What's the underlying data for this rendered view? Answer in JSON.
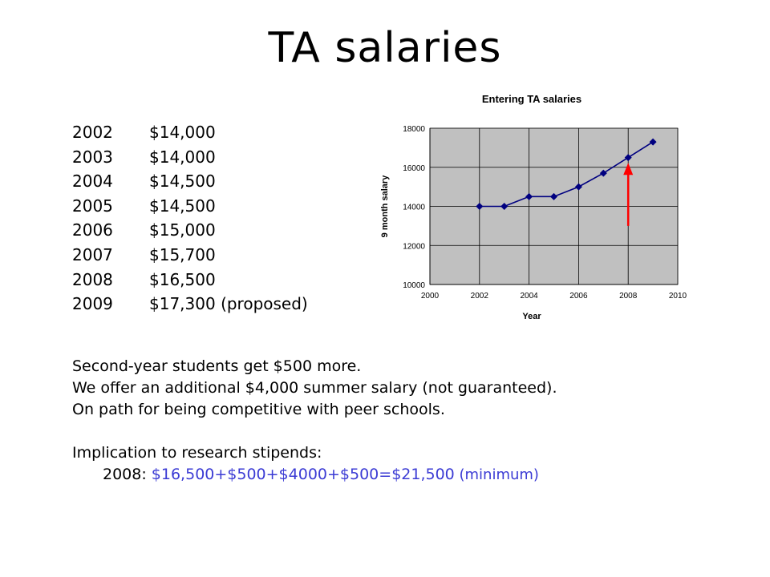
{
  "title": "TA salaries",
  "salary_table": [
    {
      "year": "2002",
      "amount": "$14,000"
    },
    {
      "year": "2003",
      "amount": "$14,000"
    },
    {
      "year": "2004",
      "amount": "$14,500"
    },
    {
      "year": "2005",
      "amount": "$14,500"
    },
    {
      "year": "2006",
      "amount": "$15,000"
    },
    {
      "year": "2007",
      "amount": "$15,700"
    },
    {
      "year": "2008",
      "amount": "$16,500"
    },
    {
      "year": "2009",
      "amount": "$17,300 (proposed)"
    }
  ],
  "notes": {
    "line1": "Second-year students get $500 more.",
    "line2": "We offer an additional $4,000 summer salary (not guaranteed).",
    "line3": "On path for being competitive with peer schools.",
    "implication_heading": "Implication to research stipends:",
    "implication_year": "2008: ",
    "implication_calc": "$16,500+$500+$4000+$500=$21,500",
    "implication_suffix": " (minimum)"
  },
  "chart_data": {
    "type": "line",
    "title": "Entering TA salaries",
    "xlabel": "Year",
    "ylabel": "9 month salary",
    "x": [
      2002,
      2003,
      2004,
      2005,
      2006,
      2007,
      2008,
      2009
    ],
    "series": [
      {
        "values": [
          14000,
          14000,
          14500,
          14500,
          15000,
          15700,
          16500,
          17300
        ]
      }
    ],
    "xlim": [
      2000,
      2010
    ],
    "ylim": [
      10000,
      18000
    ],
    "xticks": [
      2000,
      2002,
      2004,
      2006,
      2008,
      2010
    ],
    "yticks": [
      10000,
      12000,
      14000,
      16000,
      18000
    ],
    "grid": true,
    "plot_background": "#c0c0c0",
    "line_color": "#000080",
    "annotation": {
      "type": "arrow",
      "x": 2008,
      "y_from": 13000,
      "y_to": 15900,
      "color": "#ff0000"
    }
  }
}
